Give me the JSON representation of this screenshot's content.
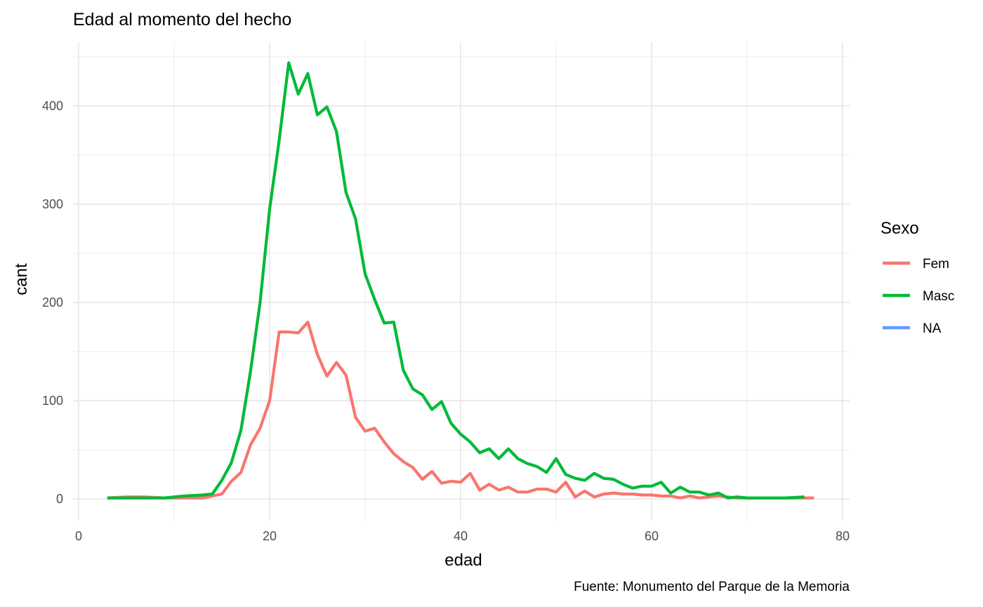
{
  "chart_data": {
    "type": "line",
    "title": "Edad al momento del hecho",
    "caption": "Fuente: Monumento del Parque de la Memoria",
    "xlabel": "edad",
    "ylabel": "cant",
    "xlim": [
      0,
      80
    ],
    "ylim": [
      -20,
      445
    ],
    "x_ticks": [
      0,
      20,
      40,
      60,
      80
    ],
    "y_ticks": [
      0,
      100,
      200,
      300,
      400
    ],
    "x_tick_labels": [
      "0",
      "20",
      "40",
      "60",
      "80"
    ],
    "y_tick_labels": [
      "0",
      "100",
      "200",
      "300",
      "400"
    ],
    "grid": true,
    "legend": {
      "title": "Sexo",
      "position": "right"
    },
    "series": [
      {
        "name": "Fem",
        "color": "#F8766D",
        "points": [
          [
            3,
            1
          ],
          [
            5,
            2
          ],
          [
            7,
            2
          ],
          [
            9,
            1
          ],
          [
            11,
            1
          ],
          [
            13,
            1
          ],
          [
            14,
            3
          ],
          [
            15,
            5
          ],
          [
            16,
            18
          ],
          [
            17,
            27
          ],
          [
            18,
            55
          ],
          [
            19,
            72
          ],
          [
            20,
            100
          ],
          [
            21,
            170
          ],
          [
            22,
            170
          ],
          [
            23,
            169
          ],
          [
            24,
            180
          ],
          [
            25,
            147
          ],
          [
            26,
            125
          ],
          [
            27,
            139
          ],
          [
            28,
            126
          ],
          [
            29,
            83
          ],
          [
            30,
            69
          ],
          [
            31,
            72
          ],
          [
            32,
            58
          ],
          [
            33,
            46
          ],
          [
            34,
            38
          ],
          [
            35,
            32
          ],
          [
            36,
            20
          ],
          [
            37,
            28
          ],
          [
            38,
            16
          ],
          [
            39,
            18
          ],
          [
            40,
            17
          ],
          [
            41,
            26
          ],
          [
            42,
            9
          ],
          [
            43,
            15
          ],
          [
            44,
            9
          ],
          [
            45,
            12
          ],
          [
            46,
            7
          ],
          [
            47,
            7
          ],
          [
            48,
            10
          ],
          [
            49,
            10
          ],
          [
            50,
            7
          ],
          [
            51,
            17
          ],
          [
            52,
            2
          ],
          [
            53,
            8
          ],
          [
            54,
            2
          ],
          [
            55,
            5
          ],
          [
            56,
            6
          ],
          [
            57,
            5
          ],
          [
            58,
            5
          ],
          [
            59,
            4
          ],
          [
            60,
            4
          ],
          [
            61,
            3
          ],
          [
            62,
            3
          ],
          [
            63,
            1
          ],
          [
            64,
            3
          ],
          [
            65,
            1
          ],
          [
            66,
            2
          ],
          [
            67,
            3
          ],
          [
            68,
            2
          ],
          [
            69,
            1
          ],
          [
            70,
            1
          ],
          [
            71,
            1
          ],
          [
            72,
            1
          ],
          [
            73,
            1
          ],
          [
            74,
            1
          ],
          [
            75,
            1
          ],
          [
            76,
            1
          ],
          [
            77,
            1
          ]
        ]
      },
      {
        "name": "Masc",
        "color": "#00BA38",
        "points": [
          [
            3,
            1
          ],
          [
            5,
            1
          ],
          [
            7,
            1
          ],
          [
            9,
            1
          ],
          [
            11,
            3
          ],
          [
            13,
            4
          ],
          [
            14,
            5
          ],
          [
            15,
            19
          ],
          [
            16,
            37
          ],
          [
            17,
            70
          ],
          [
            18,
            130
          ],
          [
            19,
            200
          ],
          [
            20,
            295
          ],
          [
            21,
            365
          ],
          [
            22,
            444
          ],
          [
            23,
            412
          ],
          [
            24,
            433
          ],
          [
            25,
            391
          ],
          [
            26,
            399
          ],
          [
            27,
            374
          ],
          [
            28,
            312
          ],
          [
            29,
            285
          ],
          [
            30,
            229
          ],
          [
            31,
            203
          ],
          [
            32,
            179
          ],
          [
            33,
            180
          ],
          [
            34,
            131
          ],
          [
            35,
            112
          ],
          [
            36,
            106
          ],
          [
            37,
            91
          ],
          [
            38,
            99
          ],
          [
            39,
            77
          ],
          [
            40,
            66
          ],
          [
            41,
            58
          ],
          [
            42,
            47
          ],
          [
            43,
            51
          ],
          [
            44,
            41
          ],
          [
            45,
            51
          ],
          [
            46,
            41
          ],
          [
            47,
            36
          ],
          [
            48,
            33
          ],
          [
            49,
            27
          ],
          [
            50,
            41
          ],
          [
            51,
            25
          ],
          [
            52,
            21
          ],
          [
            53,
            19
          ],
          [
            54,
            26
          ],
          [
            55,
            21
          ],
          [
            56,
            20
          ],
          [
            57,
            15
          ],
          [
            58,
            11
          ],
          [
            59,
            13
          ],
          [
            60,
            13
          ],
          [
            61,
            17
          ],
          [
            62,
            6
          ],
          [
            63,
            12
          ],
          [
            64,
            7
          ],
          [
            65,
            7
          ],
          [
            66,
            4
          ],
          [
            67,
            6
          ],
          [
            68,
            1
          ],
          [
            69,
            2
          ],
          [
            70,
            1
          ],
          [
            72,
            1
          ],
          [
            74,
            1
          ],
          [
            76,
            2
          ]
        ]
      },
      {
        "name": "NA",
        "color": "#619CFF",
        "points": []
      }
    ]
  }
}
